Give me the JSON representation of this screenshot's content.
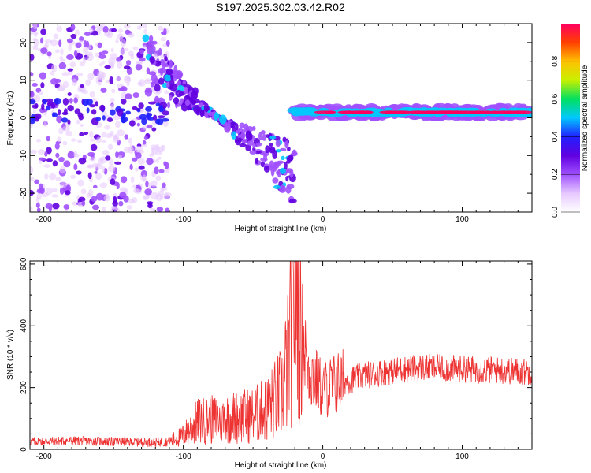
{
  "chart_data": [
    {
      "type": "heatmap",
      "title": "S197.2025.302.03.42.R02",
      "xlabel": "Height of straight line (km)",
      "ylabel": "Frequency (Hz)",
      "xlim": [
        -210,
        150
      ],
      "ylim": [
        -25,
        25
      ],
      "x_ticks": [
        -200,
        -100,
        0,
        100
      ],
      "y_ticks": [
        -20,
        -10,
        0,
        10,
        20
      ],
      "colorbar": {
        "label": "Normalized spectral amplitude",
        "range": [
          0,
          1
        ],
        "ticks": [
          "0.0",
          "0.2",
          "0.4",
          "0.6",
          "0.8"
        ],
        "colors": [
          "#ffffff",
          "#e6c8ff",
          "#a050ff",
          "#6000e0",
          "#2020ff",
          "#00c8ff",
          "#00e060",
          "#c8f000",
          "#ffc000",
          "#ff4000",
          "#ff0060"
        ]
      },
      "features": {
        "scattered_noise_x_range": [
          -210,
          -110
        ],
        "diagonal_band_x_range": [
          -130,
          -20
        ],
        "diagonal_band_y_range": [
          20,
          -20
        ],
        "steady_band_x_range": [
          -20,
          150
        ],
        "steady_band_center_hz": 1.5
      }
    },
    {
      "type": "line",
      "title": "",
      "xlabel": "Height of straight line (km)",
      "ylabel": "SNR (10 * v/v)",
      "xlim": [
        -210,
        150
      ],
      "ylim": [
        0,
        610
      ],
      "x_ticks": [
        -200,
        -100,
        0,
        100
      ],
      "y_ticks": [
        0,
        200,
        400,
        600
      ],
      "series": [
        {
          "name": "SNR",
          "color": "#ee3333",
          "x": [
            -210,
            -180,
            -150,
            -120,
            -110,
            -100,
            -90,
            -80,
            -70,
            -60,
            -50,
            -40,
            -30,
            -25,
            -22,
            -20,
            -18,
            -15,
            -10,
            0,
            10,
            20,
            30,
            50,
            70,
            90,
            110,
            130,
            150
          ],
          "y": [
            25,
            28,
            25,
            22,
            25,
            45,
            90,
            95,
            100,
            105,
            110,
            130,
            180,
            280,
            450,
            600,
            520,
            380,
            260,
            190,
            215,
            225,
            240,
            255,
            265,
            262,
            258,
            255,
            250
          ]
        }
      ]
    }
  ]
}
